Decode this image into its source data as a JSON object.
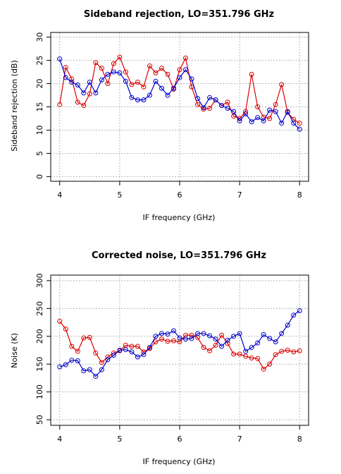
{
  "chart_data": [
    {
      "type": "line",
      "title": "Sideband rejection, LO=351.796 GHz",
      "xlabel": "IF frequency (GHz)",
      "ylabel": "Sideband rejection (dB)",
      "xlim": [
        3.85,
        8.15
      ],
      "ylim": [
        -1,
        31
      ],
      "xticks": [
        4,
        5,
        6,
        7,
        8
      ],
      "yticks": [
        0,
        5,
        10,
        15,
        20,
        25,
        30
      ],
      "grid": true,
      "x": [
        4.0,
        4.1,
        4.2,
        4.3,
        4.4,
        4.5,
        4.6,
        4.7,
        4.8,
        4.9,
        5.0,
        5.1,
        5.2,
        5.3,
        5.4,
        5.5,
        5.6,
        5.7,
        5.8,
        5.9,
        6.0,
        6.1,
        6.2,
        6.3,
        6.4,
        6.5,
        6.6,
        6.7,
        6.8,
        6.9,
        7.0,
        7.1,
        7.2,
        7.3,
        7.4,
        7.5,
        7.6,
        7.7,
        7.8,
        7.9,
        8.0
      ],
      "series": [
        {
          "color": "#dd0000",
          "values": [
            15.5,
            23.5,
            21.0,
            16.0,
            15.3,
            17.8,
            24.5,
            23.3,
            20.0,
            24.3,
            25.7,
            22.5,
            19.8,
            20.3,
            19.3,
            23.8,
            22.3,
            23.3,
            22.0,
            18.8,
            23.0,
            25.5,
            19.3,
            15.5,
            14.5,
            14.7,
            16.5,
            15.3,
            16.0,
            13.0,
            12.5,
            14.0,
            22.0,
            15.0,
            12.8,
            12.5,
            15.5,
            19.8,
            13.8,
            12.3,
            11.5
          ]
        },
        {
          "color": "#0000cc",
          "values": [
            25.3,
            21.3,
            20.3,
            19.7,
            18.0,
            20.3,
            18.0,
            20.8,
            22.0,
            22.5,
            22.3,
            20.5,
            17.0,
            16.5,
            16.5,
            17.5,
            20.5,
            19.0,
            17.5,
            19.0,
            21.3,
            23.0,
            21.0,
            16.8,
            14.8,
            17.0,
            16.5,
            15.3,
            14.7,
            14.0,
            12.0,
            13.5,
            11.8,
            12.7,
            12.0,
            14.3,
            14.0,
            11.5,
            14.0,
            11.5,
            10.2
          ]
        }
      ]
    },
    {
      "type": "line",
      "title": "Corrected noise, LO=351.796 GHz",
      "xlabel": "IF frequency (GHz)",
      "ylabel": "Noise (K)",
      "xlim": [
        3.85,
        8.15
      ],
      "ylim": [
        40,
        310
      ],
      "xticks": [
        4,
        5,
        6,
        7,
        8
      ],
      "yticks": [
        50,
        100,
        150,
        200,
        250,
        300
      ],
      "grid": true,
      "x": [
        4.0,
        4.1,
        4.2,
        4.3,
        4.4,
        4.5,
        4.6,
        4.7,
        4.8,
        4.9,
        5.0,
        5.1,
        5.2,
        5.3,
        5.4,
        5.5,
        5.6,
        5.7,
        5.8,
        5.9,
        6.0,
        6.1,
        6.2,
        6.3,
        6.4,
        6.5,
        6.6,
        6.7,
        6.8,
        6.9,
        7.0,
        7.1,
        7.2,
        7.3,
        7.4,
        7.5,
        7.6,
        7.7,
        7.8,
        7.9,
        8.0
      ],
      "series": [
        {
          "color": "#dd0000",
          "values": [
            227,
            213,
            182,
            173,
            197,
            198,
            170,
            153,
            163,
            170,
            174,
            184,
            182,
            182,
            172,
            178,
            190,
            195,
            191,
            192,
            190,
            202,
            202,
            198,
            180,
            174,
            184,
            202,
            187,
            168,
            168,
            164,
            161,
            160,
            141,
            150,
            167,
            173,
            175,
            172,
            174
          ]
        },
        {
          "color": "#0000cc",
          "values": [
            145,
            149,
            157,
            156,
            138,
            140,
            128,
            140,
            158,
            166,
            175,
            176,
            172,
            163,
            167,
            180,
            200,
            205,
            204,
            210,
            197,
            195,
            196,
            205,
            205,
            201,
            195,
            182,
            193,
            200,
            205,
            173,
            180,
            188,
            203,
            196,
            190,
            205,
            220,
            238,
            246
          ]
        }
      ]
    }
  ]
}
